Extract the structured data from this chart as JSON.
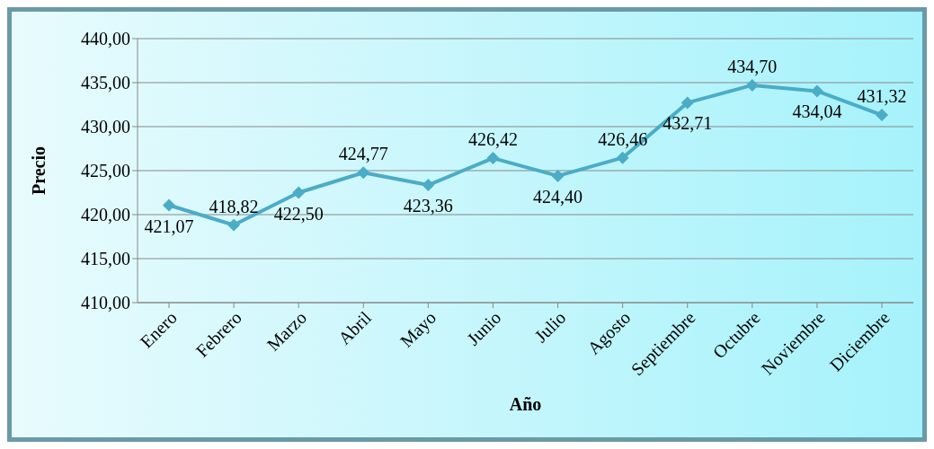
{
  "chart_data": {
    "type": "line",
    "xlabel": "Año",
    "ylabel": "Precio",
    "categories": [
      "Enero",
      "Febrero",
      "Marzo",
      "Abril",
      "Mayo",
      "Junio",
      "Julio",
      "Agosto",
      "Septiembre",
      "Octubre",
      "Noviembre",
      "Diciembre"
    ],
    "series": [
      {
        "color": "#4bacc6",
        "values": [
          421.07,
          418.82,
          422.5,
          424.77,
          423.36,
          426.42,
          424.4,
          426.46,
          432.71,
          434.7,
          434.04,
          431.32
        ],
        "value_labels": [
          "421,07",
          "418,82",
          "422,50",
          "424,77",
          "423,36",
          "426,42",
          "424,40",
          "426,46",
          "432,71",
          "434,70",
          "434,04",
          "431,32"
        ]
      }
    ],
    "ylim": [
      410,
      440
    ],
    "yticks": [
      {
        "value": 410,
        "label": "410,00"
      },
      {
        "value": 415,
        "label": "415,00"
      },
      {
        "value": 420,
        "label": "420,00"
      },
      {
        "value": 425,
        "label": "425,00"
      },
      {
        "value": 430,
        "label": "430,00"
      },
      {
        "value": 435,
        "label": "435,00"
      },
      {
        "value": 440,
        "label": "440,00"
      }
    ],
    "grid": "y",
    "marker": "diamond",
    "line_style": "solid",
    "legend": false
  }
}
